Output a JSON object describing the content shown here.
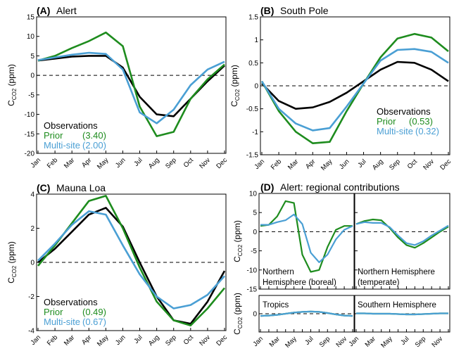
{
  "colors": {
    "observations": "#000000",
    "prior": "#1e8c1e",
    "multisite": "#4a9fd4"
  },
  "chart_data": [
    {
      "type": "line",
      "panel_letter": "(A)",
      "title": "Alert",
      "ylabel": "C",
      "ylabel_sub": "CO2",
      "ylabel_unit": " (ppm)",
      "ylim": [
        -20,
        15
      ],
      "yticks": [
        -20,
        -15,
        -10,
        -5,
        0,
        5,
        10,
        15
      ],
      "categories": [
        "Jan",
        "Feb",
        "Mar",
        "Apr",
        "May",
        "Jun",
        "Jul",
        "Aug",
        "Sep",
        "Oct",
        "Nov",
        "Dec"
      ],
      "legend_title": "Observations",
      "series": [
        {
          "name": "Observations",
          "legend_value": "",
          "values": [
            3.8,
            4.3,
            4.8,
            5.0,
            5.0,
            2.0,
            -5.5,
            -10.0,
            -10.5,
            -6.0,
            -1.5,
            2.5
          ]
        },
        {
          "name": "Prior",
          "legend_value": "(3.40)",
          "values": [
            3.8,
            5.0,
            7.0,
            8.8,
            11.0,
            7.5,
            -8.0,
            -15.6,
            -14.5,
            -6.0,
            -1.0,
            2.8
          ]
        },
        {
          "name": "Multi-site",
          "legend_value": "(2.00)",
          "values": [
            3.9,
            4.6,
            5.3,
            5.8,
            5.5,
            1.5,
            -9.5,
            -12.3,
            -8.8,
            -2.5,
            1.5,
            3.5
          ]
        }
      ]
    },
    {
      "type": "line",
      "panel_letter": "(B)",
      "title": "South Pole",
      "ylabel": "C",
      "ylabel_sub": "CO2",
      "ylabel_unit": " (ppm)",
      "ylim": [
        -1.5,
        1.5
      ],
      "yticks": [
        -1.5,
        -1,
        -0.5,
        0,
        0.5,
        1,
        1.5
      ],
      "categories": [
        "Jan",
        "Feb",
        "Mar",
        "Apr",
        "May",
        "Jun",
        "Jul",
        "Aug",
        "Sep",
        "Oct",
        "Nov",
        "Dec"
      ],
      "legend_title": "Observations",
      "series": [
        {
          "name": "Observations",
          "legend_value": "",
          "values": [
            0.05,
            -0.33,
            -0.5,
            -0.47,
            -0.35,
            -0.15,
            0.1,
            0.35,
            0.52,
            0.5,
            0.35,
            0.1
          ]
        },
        {
          "name": "Prior",
          "legend_value": "(0.53)",
          "values": [
            0.1,
            -0.55,
            -1.0,
            -1.25,
            -1.22,
            -0.55,
            0.05,
            0.62,
            1.03,
            1.13,
            1.05,
            0.75
          ]
        },
        {
          "name": "Multi-site",
          "legend_value": "(0.32)",
          "values": [
            0.1,
            -0.5,
            -0.82,
            -0.97,
            -0.92,
            -0.45,
            0.05,
            0.55,
            0.78,
            0.8,
            0.74,
            0.5
          ]
        }
      ]
    },
    {
      "type": "line",
      "panel_letter": "(C)",
      "title": "Mauna Loa",
      "ylabel": "C",
      "ylabel_sub": "CO2",
      "ylabel_unit": " (ppm)",
      "ylim": [
        -4,
        4
      ],
      "yticks": [
        -4,
        -2,
        0,
        2,
        4
      ],
      "categories": [
        "Jan",
        "Feb",
        "Mar",
        "Apr",
        "May",
        "Jun",
        "Jul",
        "Aug",
        "Sep",
        "Oct",
        "Nov",
        "Dec"
      ],
      "legend_title": "Observations",
      "series": [
        {
          "name": "Observations",
          "legend_value": "",
          "values": [
            0.0,
            0.8,
            1.8,
            2.8,
            3.2,
            2.1,
            0.0,
            -2.0,
            -3.4,
            -3.6,
            -2.3,
            -0.5
          ]
        },
        {
          "name": "Prior",
          "legend_value": "(0.49)",
          "values": [
            -0.2,
            1.0,
            2.3,
            3.6,
            3.9,
            2.0,
            -0.3,
            -2.3,
            -3.4,
            -3.7,
            -2.7,
            -1.5
          ]
        },
        {
          "name": "Multi-site",
          "legend_value": "(0.67)",
          "values": [
            0.1,
            1.1,
            2.2,
            3.0,
            2.8,
            1.0,
            -0.7,
            -2.0,
            -2.7,
            -2.5,
            -1.9,
            -0.8
          ]
        }
      ]
    },
    {
      "type": "line",
      "panel_letter": "(D)",
      "title": "Alert: regional contributions",
      "ylabel": "C",
      "ylabel_sub": "CO2",
      "ylabel_unit": " (ppm)",
      "ylim_top": [
        -15,
        10
      ],
      "yticks_top": [
        -15,
        -10,
        -5,
        0,
        5,
        10
      ],
      "ylim_bottom": [
        -5,
        5
      ],
      "yticks_bottom": [
        0
      ],
      "categories": [
        "Jan",
        "Feb",
        "Mar",
        "Apr",
        "May",
        "Jun",
        "Jul",
        "Aug",
        "Sep",
        "Oct",
        "Nov",
        "Dec"
      ],
      "month_labels": [
        "Jan",
        "Mar",
        "May",
        "Jul",
        "Sep",
        "Nov"
      ],
      "subplots": [
        {
          "label_lines": [
            "Northern",
            "Hemisphere (boreal)"
          ],
          "series": [
            {
              "name": "Prior",
              "values": [
                1.5,
                1.8,
                4.0,
                8.0,
                7.5,
                -6.0,
                -10.5,
                -10.0,
                -4.0,
                0.5,
                1.5,
                1.5
              ]
            },
            {
              "name": "Multi-site",
              "values": [
                1.8,
                1.8,
                2.5,
                3.0,
                4.5,
                2.0,
                -5.5,
                -8.0,
                -6.0,
                -2.0,
                0.5,
                1.5
              ]
            }
          ]
        },
        {
          "label_lines": [
            "Northern Hemisphere",
            "(temperate)"
          ],
          "series": [
            {
              "name": "Prior",
              "values": [
                2.0,
                2.8,
                3.2,
                3.0,
                1.0,
                -1.5,
                -3.5,
                -4.2,
                -3.0,
                -1.5,
                0.0,
                1.3
              ]
            },
            {
              "name": "Multi-site",
              "values": [
                2.0,
                2.5,
                2.3,
                2.3,
                1.2,
                -1.0,
                -3.0,
                -3.5,
                -2.5,
                -1.0,
                0.3,
                1.6
              ]
            }
          ]
        },
        {
          "label_lines": [
            "Tropics"
          ],
          "series": [
            {
              "name": "Prior",
              "values": [
                -0.6,
                -0.5,
                -0.3,
                0.0,
                0.3,
                0.5,
                0.6,
                0.5,
                0.2,
                -0.2,
                -0.5,
                -0.6
              ]
            },
            {
              "name": "Multi-site",
              "values": [
                -0.6,
                -0.5,
                -0.3,
                0.0,
                0.3,
                0.5,
                0.6,
                0.5,
                0.2,
                -0.2,
                -0.5,
                -0.6
              ]
            }
          ]
        },
        {
          "label_lines": [
            "Southern Hemisphere"
          ],
          "series": [
            {
              "name": "Prior",
              "values": [
                0.1,
                0.1,
                0.0,
                0.0,
                0.0,
                -0.1,
                -0.2,
                -0.2,
                -0.1,
                0.0,
                0.1,
                0.1
              ]
            },
            {
              "name": "Multi-site",
              "values": [
                0.1,
                0.1,
                0.0,
                0.0,
                0.0,
                -0.1,
                -0.2,
                -0.2,
                -0.1,
                0.0,
                0.1,
                0.1
              ]
            }
          ]
        }
      ]
    }
  ]
}
